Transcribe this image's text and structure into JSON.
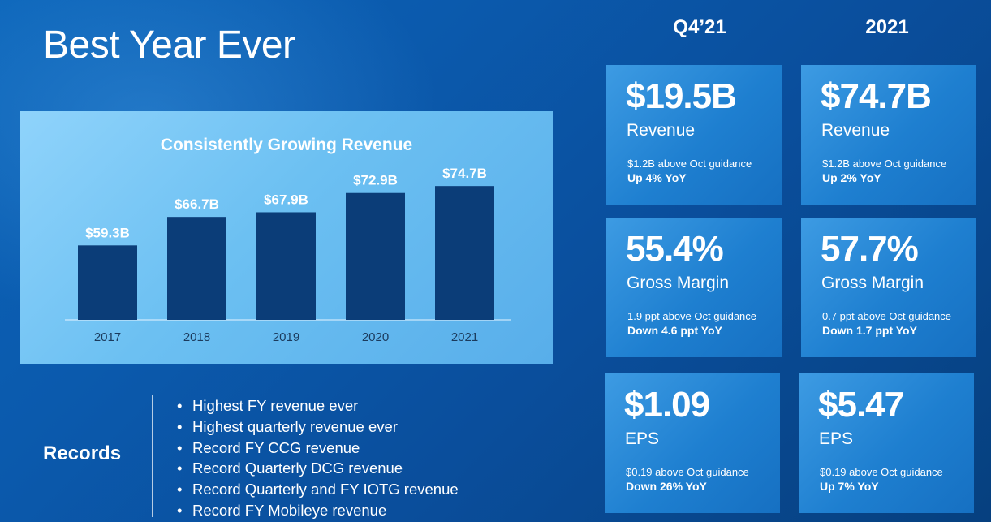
{
  "title": "Best Year Ever",
  "chart_data": {
    "type": "bar",
    "title": "Consistently Growing Revenue",
    "categories": [
      "2017",
      "2018",
      "2019",
      "2020",
      "2021"
    ],
    "values": [
      59.3,
      66.7,
      67.9,
      72.9,
      74.7
    ],
    "data_labels": [
      "$59.3B",
      "$66.7B",
      "$67.9B",
      "$72.9B",
      "$74.7B"
    ],
    "unit": "$B",
    "ylim": [
      0,
      80
    ],
    "grid": false,
    "bar_color": "#0b3d78",
    "panel_color": "#6cc0f2"
  },
  "records": {
    "label": "Records",
    "bullet": "•",
    "items": [
      "Highest FY revenue ever",
      "Highest quarterly revenue ever",
      "Record FY CCG revenue",
      "Record Quarterly DCG revenue",
      "Record Quarterly and FY IOTG revenue",
      "Record FY Mobileye revenue"
    ]
  },
  "columns": {
    "q4": "Q4’21",
    "fy": "2021"
  },
  "cards": {
    "q4_revenue": {
      "value": "$19.5B",
      "metric": "Revenue",
      "line1": "$1.2B above Oct guidance",
      "line2": "Up 4% YoY"
    },
    "fy_revenue": {
      "value": "$74.7B",
      "metric": "Revenue",
      "line1": "$1.2B above Oct guidance",
      "line2": "Up 2% YoY"
    },
    "q4_margin": {
      "value": "55.4%",
      "metric": "Gross Margin",
      "line1": "1.9 ppt above Oct guidance",
      "line2": "Down 4.6 ppt YoY"
    },
    "fy_margin": {
      "value": "57.7%",
      "metric": "Gross Margin",
      "line1": "0.7 ppt above Oct guidance",
      "line2": "Down 1.7 ppt YoY"
    },
    "q4_eps": {
      "value": "$1.09",
      "metric": "EPS",
      "line1": "$0.19 above Oct guidance",
      "line2": "Down 26% YoY"
    },
    "fy_eps": {
      "value": "$5.47",
      "metric": "EPS",
      "line1": "$0.19 above Oct guidance",
      "line2": "Up 7% YoY"
    }
  }
}
